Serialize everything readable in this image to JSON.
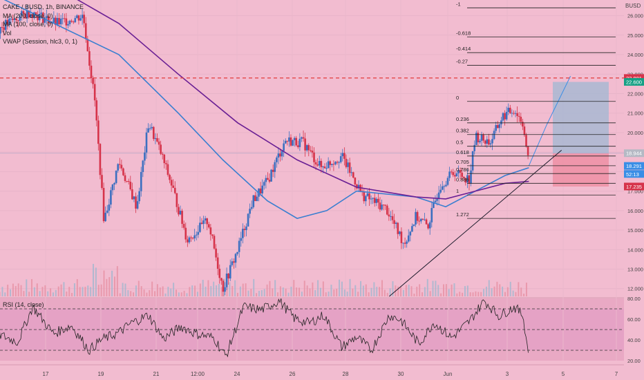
{
  "legend": {
    "symbol": "CAKE / BUSD, 1h, BINANCE",
    "ma200": "MA (200, close, 0)",
    "ma100": "MA (100, close, 0)",
    "vol": "Vol",
    "vwap": "VWAP (Session, hlc3, 0, 1)"
  },
  "currency": "BUSD",
  "rsi_label": "RSI (14, close)",
  "colors": {
    "background": "#f2bcd0",
    "up": "#3b6fc0",
    "down": "#d6334a",
    "ma200": "#6a1f94",
    "ma100": "#3a7fd0",
    "resistance": "#e23a3a",
    "target_box": "#9fb8d3",
    "stop_box": "#ee8fa4"
  },
  "chart_data": [
    {
      "type": "candlestick",
      "title": "CAKE / BUSD, 1h, BINANCE",
      "x_ticks": [
        "17",
        "19",
        "21",
        "12:00",
        "24",
        "26",
        "28",
        "30",
        "Jun",
        "3",
        "5",
        "7"
      ],
      "y_ticks": [
        12.0,
        13.0,
        14.0,
        15.0,
        16.0,
        17.0,
        18.0,
        19.0,
        20.0,
        21.0,
        22.0,
        23.0,
        24.0,
        25.0,
        26.0
      ],
      "ylim": [
        11.6,
        26.8
      ],
      "price_path": [
        [
          15.9,
          25.3
        ],
        [
          17.0,
          26.2
        ],
        [
          17.9,
          25.6
        ],
        [
          18.8,
          26.0
        ],
        [
          19.2,
          21.5
        ],
        [
          19.5,
          15.5
        ],
        [
          20.0,
          18.5
        ],
        [
          20.6,
          16.2
        ],
        [
          21.0,
          20.5
        ],
        [
          21.4,
          19.0
        ],
        [
          21.8,
          17.2
        ],
        [
          22.3,
          14.5
        ],
        [
          23.0,
          15.5
        ],
        [
          23.5,
          12.0
        ],
        [
          24.0,
          14.0
        ],
        [
          24.5,
          16.5
        ],
        [
          25.0,
          17.5
        ],
        [
          25.6,
          19.6
        ],
        [
          26.2,
          19.5
        ],
        [
          26.8,
          18.2
        ],
        [
          27.5,
          18.8
        ],
        [
          28.2,
          16.8
        ],
        [
          29.0,
          16.1
        ],
        [
          29.6,
          14.3
        ],
        [
          30.0,
          15.7
        ],
        [
          30.4,
          15.2
        ],
        [
          30.8,
          17.3
        ],
        [
          31.3,
          18.0
        ],
        [
          31.8,
          17.6
        ],
        [
          32.0,
          19.8
        ],
        [
          32.5,
          19.5
        ],
        [
          32.9,
          20.8
        ],
        [
          33.3,
          21.2
        ],
        [
          33.6,
          20.5
        ],
        [
          33.8,
          18.3
        ]
      ],
      "ma100": [
        [
          15.9,
          27.0
        ],
        [
          20.0,
          24.0
        ],
        [
          22.0,
          21.0
        ],
        [
          23.5,
          18.6
        ],
        [
          25.0,
          16.5
        ],
        [
          26.0,
          15.6
        ],
        [
          27.0,
          16.0
        ],
        [
          28.0,
          17.0
        ],
        [
          30.0,
          16.7
        ],
        [
          31.0,
          16.2
        ],
        [
          32.0,
          17.0
        ],
        [
          33.0,
          17.8
        ],
        [
          33.8,
          18.2
        ]
      ],
      "ma200": [
        [
          18.4,
          27.0
        ],
        [
          20.0,
          25.6
        ],
        [
          22.0,
          23.0
        ],
        [
          24.0,
          20.5
        ],
        [
          26.0,
          18.6
        ],
        [
          28.0,
          17.2
        ],
        [
          30.0,
          16.7
        ],
        [
          31.0,
          16.6
        ],
        [
          32.0,
          17.0
        ],
        [
          33.0,
          17.4
        ],
        [
          33.8,
          17.5
        ]
      ],
      "fibonacci": [
        {
          "level": "-1",
          "price": 26.4
        },
        {
          "level": "-0.618",
          "price": 24.9
        },
        {
          "level": "-0.414",
          "price": 24.1
        },
        {
          "level": "-0.27",
          "price": 23.45
        },
        {
          "level": "0",
          "price": 21.6
        },
        {
          "level": "0.236",
          "price": 20.5
        },
        {
          "level": "0.382",
          "price": 19.9
        },
        {
          "level": "0.5",
          "price": 19.3
        },
        {
          "level": "0.618",
          "price": 18.8
        },
        {
          "level": "0.705",
          "price": 18.3
        },
        {
          "level": "0.786",
          "price": 17.9
        },
        {
          "level": "0.886",
          "price": 17.4
        },
        {
          "level": "1",
          "price": 16.8
        },
        {
          "level": "1.272",
          "price": 15.6
        }
      ],
      "trendline": [
        [
          29.1,
          11.6
        ],
        [
          34.9,
          19.1
        ]
      ],
      "resistance": 22.801,
      "position": {
        "entry": 18.944,
        "target": 22.6,
        "stop": 17.235
      },
      "price_labels": [
        {
          "text": "22.801",
          "value": 22.801,
          "color": "#d6334a"
        },
        {
          "text": "22.600",
          "value": 22.6,
          "color": "#16a085"
        },
        {
          "text": "18.944",
          "value": 18.944,
          "color": "#b5b9c4"
        },
        {
          "text": "18.291",
          "value": 18.291,
          "color": "#3a8ee6"
        },
        {
          "text": "52:13",
          "value": 17.88,
          "color": "#3a8ee6"
        },
        {
          "text": "17.235",
          "value": 17.235,
          "color": "#d6334a"
        }
      ]
    },
    {
      "type": "line",
      "title": "RSI (14, close)",
      "ylim": [
        20,
        80
      ],
      "y_ticks": [
        20.0,
        40.0,
        60.0,
        80.0
      ],
      "bands": [
        30,
        50,
        70
      ],
      "series": [
        {
          "values": [
            [
              15.9,
              46
            ],
            [
              16.6,
              38
            ],
            [
              17.1,
              72
            ],
            [
              17.8,
              46
            ],
            [
              18.4,
              54
            ],
            [
              19.0,
              30
            ],
            [
              19.4,
              40
            ],
            [
              20.0,
              47
            ],
            [
              20.4,
              56
            ],
            [
              21.0,
              64
            ],
            [
              21.5,
              41
            ],
            [
              22.1,
              53
            ],
            [
              22.6,
              46
            ],
            [
              23.2,
              42
            ],
            [
              23.6,
              24
            ],
            [
              24.2,
              72
            ],
            [
              24.8,
              69
            ],
            [
              25.4,
              78
            ],
            [
              25.9,
              61
            ],
            [
              26.4,
              56
            ],
            [
              26.9,
              64
            ],
            [
              27.5,
              33
            ],
            [
              28.0,
              43
            ],
            [
              28.5,
              30
            ],
            [
              29.1,
              64
            ],
            [
              29.5,
              59
            ],
            [
              30.1,
              36
            ],
            [
              30.6,
              57
            ],
            [
              31.2,
              42
            ],
            [
              31.8,
              58
            ],
            [
              32.3,
              78
            ],
            [
              32.8,
              63
            ],
            [
              33.3,
              72
            ],
            [
              33.6,
              64
            ],
            [
              33.8,
              24
            ]
          ]
        }
      ]
    }
  ]
}
